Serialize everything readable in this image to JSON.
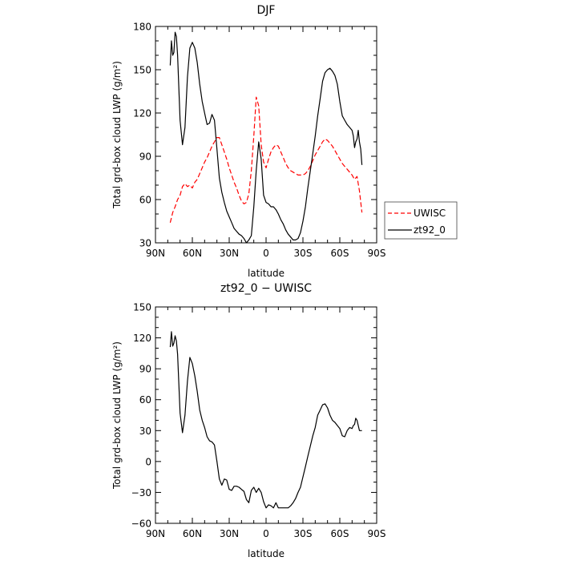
{
  "chart_data": [
    {
      "type": "line",
      "title": "DJF",
      "xlabel": "latitude",
      "ylabel": "Total grd-box cloud LWP (g/m²)",
      "xlim": [
        90,
        -90
      ],
      "ylim": [
        30,
        180
      ],
      "x_ticks": [
        90,
        60,
        30,
        0,
        -30,
        -60,
        -90
      ],
      "x_tick_labels": [
        "90N",
        "60N",
        "30N",
        "0",
        "30S",
        "60S",
        "90S"
      ],
      "y_ticks": [
        30,
        60,
        90,
        120,
        150,
        180
      ],
      "y_tick_labels": [
        "30",
        "60",
        "90",
        "120",
        "150",
        "180"
      ],
      "legend": {
        "position": "right",
        "entries": [
          {
            "label": "UWISC",
            "color": "#ff0000",
            "dash": "dashed"
          },
          {
            "label": "zt92_0",
            "color": "#000000",
            "dash": "solid"
          }
        ]
      },
      "series": [
        {
          "name": "UWISC",
          "color": "#ff0000",
          "dash": "dashed",
          "x": [
            78,
            76,
            74,
            72,
            70,
            68,
            66,
            64,
            62,
            60,
            58,
            56,
            54,
            52,
            50,
            48,
            46,
            44,
            42,
            40,
            38,
            36,
            34,
            32,
            30,
            28,
            26,
            24,
            22,
            20,
            18,
            16,
            14,
            12,
            10,
            8,
            6,
            4,
            2,
            0,
            -2,
            -4,
            -6,
            -8,
            -10,
            -12,
            -14,
            -16,
            -18,
            -20,
            -22,
            -24,
            -26,
            -28,
            -30,
            -32,
            -34,
            -36,
            -38,
            -40,
            -42,
            -44,
            -46,
            -48,
            -50,
            -52,
            -54,
            -56,
            -58,
            -60,
            -62,
            -64,
            -66,
            -68,
            -70,
            -72,
            -74,
            -76,
            -78
          ],
          "values": [
            44,
            51,
            55,
            60,
            63,
            69,
            71,
            69,
            70,
            68,
            72,
            74,
            78,
            82,
            86,
            89,
            93,
            97,
            100,
            103,
            103,
            98,
            93,
            88,
            82,
            77,
            72,
            68,
            63,
            59,
            57,
            58,
            64,
            80,
            104,
            131,
            125,
            98,
            86,
            82,
            88,
            93,
            96,
            98,
            97,
            93,
            89,
            85,
            82,
            80,
            79,
            78,
            77,
            77,
            77,
            78,
            80,
            83,
            87,
            91,
            94,
            97,
            100,
            102,
            101,
            99,
            97,
            94,
            91,
            88,
            85,
            83,
            81,
            79,
            77,
            74,
            76,
            66,
            51
          ]
        },
        {
          "name": "zt92_0",
          "color": "#000000",
          "dash": "solid",
          "x": [
            78,
            77,
            76,
            75,
            74,
            73,
            72,
            70,
            68,
            66,
            64,
            62,
            60,
            58,
            56,
            54,
            52,
            50,
            48,
            46,
            44,
            42,
            40,
            38,
            36,
            34,
            32,
            30,
            28,
            26,
            24,
            22,
            20,
            18,
            16,
            14,
            12,
            10,
            8,
            6,
            4,
            2,
            0,
            -2,
            -4,
            -6,
            -8,
            -10,
            -12,
            -14,
            -16,
            -18,
            -20,
            -22,
            -24,
            -26,
            -28,
            -30,
            -32,
            -34,
            -36,
            -38,
            -40,
            -42,
            -44,
            -46,
            -48,
            -50,
            -52,
            -54,
            -56,
            -58,
            -60,
            -62,
            -64,
            -66,
            -68,
            -70,
            -71,
            -72,
            -73,
            -74,
            -75,
            -76,
            -77,
            -78
          ],
          "values": [
            153,
            170,
            160,
            162,
            176,
            173,
            160,
            115,
            98,
            110,
            145,
            165,
            169,
            165,
            155,
            140,
            128,
            120,
            112,
            113,
            119,
            115,
            95,
            75,
            65,
            58,
            52,
            48,
            44,
            40,
            38,
            36,
            35,
            33,
            30,
            32,
            35,
            55,
            80,
            100,
            88,
            63,
            58,
            57,
            55,
            55,
            53,
            50,
            46,
            43,
            39,
            36,
            34,
            32,
            32,
            33,
            37,
            45,
            55,
            68,
            80,
            92,
            104,
            118,
            130,
            142,
            148,
            150,
            151,
            149,
            146,
            140,
            128,
            118,
            115,
            112,
            110,
            108,
            104,
            96,
            100,
            102,
            108,
            100,
            95,
            84
          ]
        }
      ]
    },
    {
      "type": "line",
      "title": "zt92_0 − UWISC",
      "xlabel": "latitude",
      "ylabel": "Total grd-box cloud LWP (g/m²)",
      "xlim": [
        90,
        -90
      ],
      "ylim": [
        -60,
        150
      ],
      "x_ticks": [
        90,
        60,
        30,
        0,
        -30,
        -60,
        -90
      ],
      "x_tick_labels": [
        "90N",
        "60N",
        "30N",
        "0",
        "30S",
        "60S",
        "90S"
      ],
      "y_ticks": [
        -60,
        -30,
        0,
        30,
        60,
        90,
        120,
        150
      ],
      "y_tick_labels": [
        "−60",
        "−30",
        "0",
        "30",
        "60",
        "90",
        "120",
        "150"
      ],
      "series": [
        {
          "color": "#000000",
          "dash": "solid",
          "x": [
            78,
            77,
            76,
            75,
            74,
            73,
            72,
            70,
            68,
            66,
            64,
            62,
            60,
            58,
            56,
            54,
            52,
            50,
            48,
            46,
            44,
            42,
            40,
            38,
            36,
            34,
            32,
            30,
            28,
            26,
            24,
            22,
            20,
            18,
            16,
            14,
            12,
            10,
            8,
            6,
            4,
            2,
            0,
            -2,
            -4,
            -6,
            -8,
            -10,
            -12,
            -14,
            -16,
            -18,
            -20,
            -22,
            -24,
            -26,
            -28,
            -30,
            -32,
            -34,
            -36,
            -38,
            -40,
            -42,
            -44,
            -46,
            -48,
            -50,
            -52,
            -54,
            -56,
            -58,
            -60,
            -62,
            -64,
            -66,
            -68,
            -70,
            -71,
            -72,
            -73,
            -74,
            -75,
            -76,
            -77,
            -78
          ],
          "values": [
            111,
            126,
            112,
            115,
            122,
            117,
            104,
            47,
            28,
            45,
            78,
            101,
            95,
            83,
            68,
            50,
            40,
            33,
            24,
            20,
            19,
            16,
            0,
            -17,
            -23,
            -17,
            -18,
            -27,
            -28,
            -24,
            -24,
            -25,
            -27,
            -29,
            -37,
            -40,
            -28,
            -25,
            -30,
            -26,
            -30,
            -39,
            -45,
            -42,
            -43,
            -45,
            -40,
            -45,
            -45,
            -45,
            -45,
            -45,
            -43,
            -40,
            -36,
            -30,
            -25,
            -15,
            -5,
            5,
            15,
            25,
            33,
            45,
            50,
            55,
            56,
            52,
            45,
            40,
            38,
            35,
            32,
            25,
            24,
            30,
            33,
            32,
            35,
            36,
            42,
            40,
            35,
            30,
            30,
            30
          ]
        }
      ]
    }
  ]
}
